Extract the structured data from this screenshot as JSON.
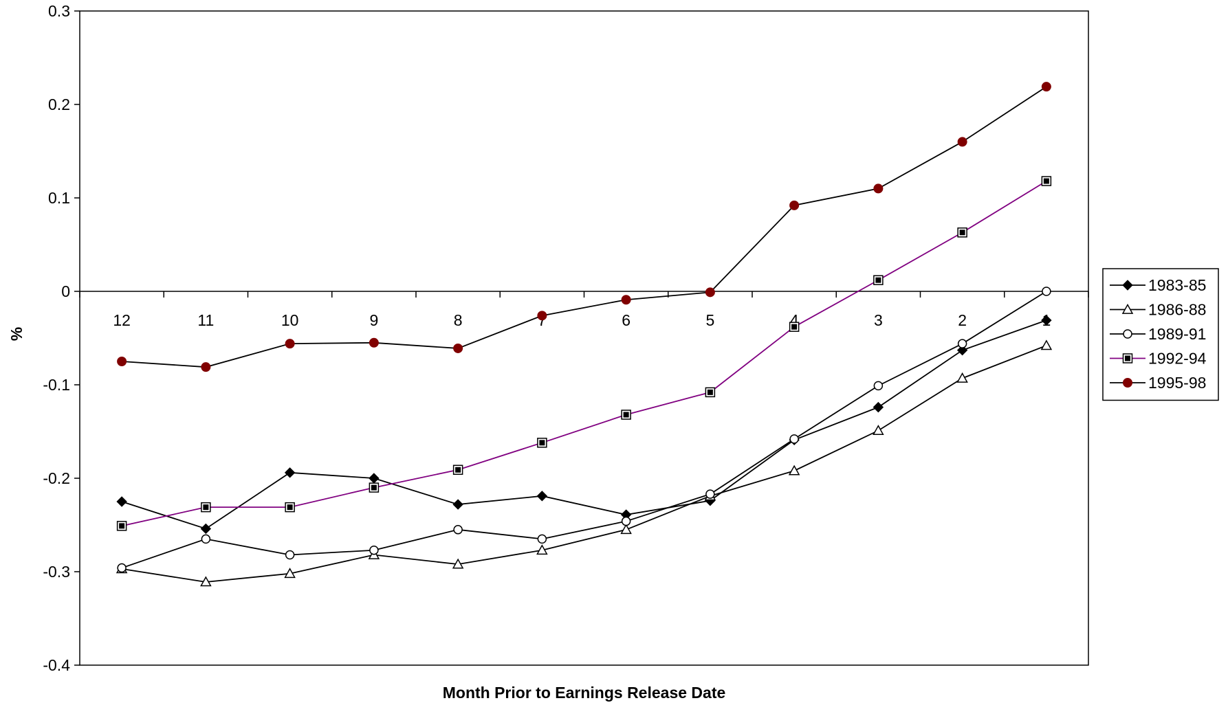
{
  "chart_data": {
    "type": "line",
    "title": "",
    "xlabel": "Month Prior to Earnings Release Date",
    "ylabel": "%",
    "categories": [
      "12",
      "11",
      "10",
      "9",
      "8",
      "7",
      "6",
      "5",
      "4",
      "3",
      "2",
      "1"
    ],
    "ylim": [
      -0.4,
      0.3
    ],
    "yticks": [
      -0.4,
      -0.3,
      -0.2,
      -0.1,
      0,
      0.1,
      0.2,
      0.3
    ],
    "ytick_labels": [
      "-0.4",
      "-0.3",
      "-0.2",
      "-0.1",
      "0",
      "0.1",
      "0.2",
      "0.3"
    ],
    "grid": false,
    "legend_position": "right",
    "series": [
      {
        "name": "1983-85",
        "marker": "diamond",
        "color": "#000000",
        "line_color": "#000000",
        "values": [
          -0.225,
          -0.254,
          -0.194,
          -0.2,
          -0.228,
          -0.219,
          -0.239,
          -0.224,
          -0.159,
          -0.124,
          -0.063,
          -0.031
        ]
      },
      {
        "name": "1986-88",
        "marker": "triangle-open",
        "color": "#000000",
        "line_color": "#000000",
        "values": [
          -0.297,
          -0.311,
          -0.302,
          -0.282,
          -0.292,
          -0.277,
          -0.255,
          -0.219,
          -0.192,
          -0.149,
          -0.093,
          -0.058
        ]
      },
      {
        "name": "1989-91",
        "marker": "circle-open",
        "color": "#000000",
        "line_color": "#000000",
        "values": [
          -0.296,
          -0.265,
          -0.282,
          -0.277,
          -0.255,
          -0.265,
          -0.246,
          -0.217,
          -0.158,
          -0.101,
          -0.056,
          0.0
        ]
      },
      {
        "name": "1992-94",
        "marker": "square-inset",
        "color": "#000000",
        "line_color": "#800080",
        "values": [
          -0.251,
          -0.231,
          -0.231,
          -0.21,
          -0.191,
          -0.162,
          -0.132,
          -0.108,
          -0.038,
          0.012,
          0.063,
          0.118
        ]
      },
      {
        "name": "1995-98",
        "marker": "circle-filled",
        "color": "#800000",
        "line_color": "#000000",
        "values": [
          -0.075,
          -0.081,
          -0.056,
          -0.055,
          -0.061,
          -0.026,
          -0.009,
          -0.001,
          0.092,
          0.11,
          0.16,
          0.219
        ]
      }
    ]
  }
}
